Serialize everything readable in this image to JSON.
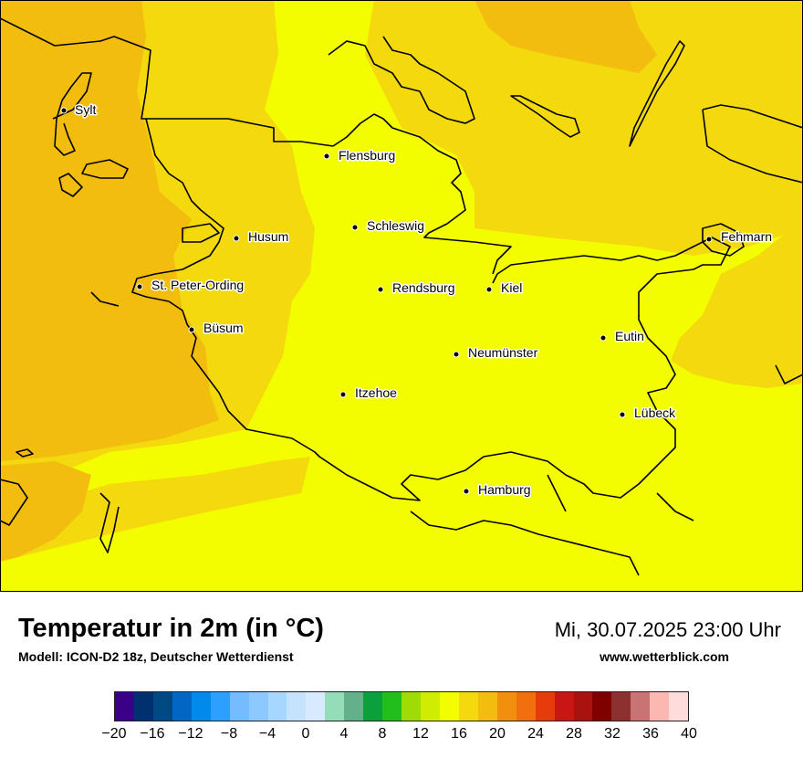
{
  "title": "Temperatur in 2m (in °C)",
  "subtitle": "Modell: ICON-D2 18z, Deutscher Wetterdienst",
  "datetime": "Mi, 30.07.2025 23:00 Uhr",
  "website": "www.wetterblick.com",
  "cities": [
    {
      "name": "Sylt"
    },
    {
      "name": "Flensburg"
    },
    {
      "name": "Schleswig"
    },
    {
      "name": "Husum"
    },
    {
      "name": "Fehmarn"
    },
    {
      "name": "St. Peter-Ording"
    },
    {
      "name": "Rendsburg"
    },
    {
      "name": "Kiel"
    },
    {
      "name": "Büsum"
    },
    {
      "name": "Eutin"
    },
    {
      "name": "Neumünster"
    },
    {
      "name": "Itzehoe"
    },
    {
      "name": "Lübeck"
    },
    {
      "name": "Hamburg"
    }
  ],
  "legend": {
    "ticks": [
      "−20",
      "−16",
      "−12",
      "−8",
      "−4",
      "0",
      "4",
      "8",
      "12",
      "16",
      "20",
      "24",
      "28",
      "32",
      "36",
      "40"
    ],
    "colors": [
      "#3a0088",
      "#00306e",
      "#014982",
      "#0166c4",
      "#0189ec",
      "#2da0ff",
      "#74bcff",
      "#8dc8ff",
      "#a7d6ff",
      "#c5e3ff",
      "#d8eaff",
      "#95ddb8",
      "#64b08a",
      "#0aa03b",
      "#21be1c",
      "#9fdc06",
      "#d0ec00",
      "#f3fd00",
      "#f3d90d",
      "#f3bd10",
      "#f1900f",
      "#f1700d",
      "#e63b0b",
      "#c91614",
      "#a9120f",
      "#800000",
      "#8c3030",
      "#c87474",
      "#fab8b0",
      "#ffdcdc"
    ]
  },
  "field_colors": {
    "cool": "#f3fd00",
    "mild": "#f3d90d",
    "warm": "#f3bd10",
    "coast": "#000000"
  }
}
